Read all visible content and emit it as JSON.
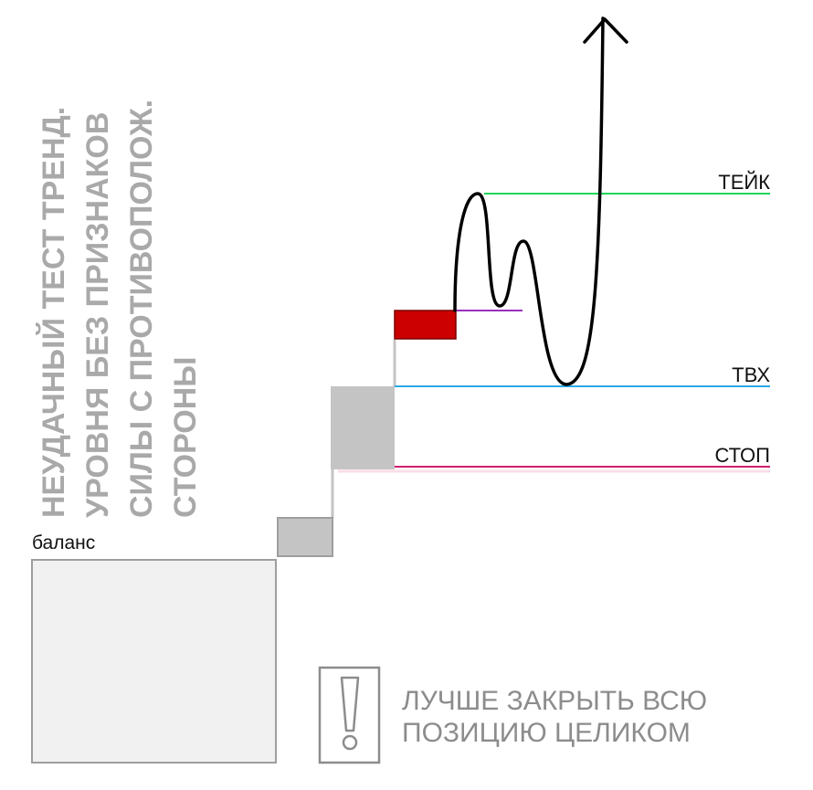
{
  "vertical_note": {
    "lines": [
      "НЕУДАЧНЫЙ ТЕСТ ТРЕНД.",
      "УРОВНЯ БЕЗ ПРИЗНАКОВ",
      "СИЛЫ С ПРОТИВОПОЛОЖ.",
      "СТОРОНЫ"
    ]
  },
  "labels": {
    "balance": "баланс",
    "take": "ТЕЙК",
    "entry": "ТВХ",
    "stop": "СТОП"
  },
  "advice": {
    "lines": [
      "ЛУЧШЕ ЗАКРЫТЬ ВСЮ",
      "ПОЗИЦИЮ ЦЕЛИКОМ"
    ]
  },
  "colors": {
    "take_line": "#22d45a",
    "entry_line": "#2aa8e6",
    "stop_line": "#d0206e",
    "test_line": "#9b2fbf",
    "test_block": "#cc0000",
    "steps": "#c4c4c4",
    "balance_box": "#f1f1f1",
    "vertical_text": "#a9a9a9",
    "advice_text": "#8c8c8c",
    "price_path": "#000000"
  },
  "icons": {
    "warning": "exclamation-icon"
  }
}
